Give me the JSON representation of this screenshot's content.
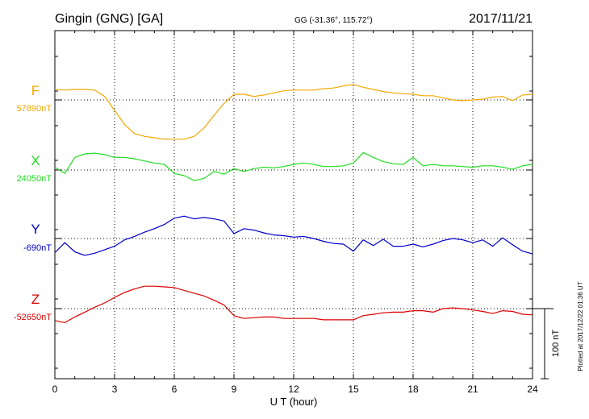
{
  "header": {
    "station": "Gingin (GNG)  [GA]",
    "coords": "GG (-31.36°, 115.72°)",
    "date": "2017/11/21"
  },
  "chart_data": {
    "type": "line",
    "title": "Gingin (GNG)  [GA]",
    "xlabel": "U T (hour)",
    "ylabel": "",
    "xlim": [
      0,
      24
    ],
    "xticks": [
      0,
      3,
      6,
      9,
      12,
      15,
      18,
      21,
      24
    ],
    "xtick_labels": [
      "0",
      "3",
      "6",
      "9",
      "12",
      "15",
      "18",
      "21",
      "24"
    ],
    "grid": true,
    "scale_bar": "100 nT",
    "units": "nT",
    "series": [
      {
        "name": "F",
        "baseline_label": "57890nT",
        "baseline": 57890,
        "color": "#f5a700",
        "x": [
          0,
          0.5,
          1,
          1.5,
          2,
          2.5,
          3,
          3.5,
          4,
          4.5,
          5,
          5.5,
          6,
          6.5,
          7,
          7.5,
          8,
          8.5,
          9,
          9.5,
          10,
          10.5,
          11,
          11.5,
          12,
          12.5,
          13,
          13.5,
          14,
          14.5,
          15,
          15.5,
          16,
          16.5,
          17,
          17.5,
          18,
          18.5,
          19,
          19.5,
          20,
          20.5,
          21,
          21.5,
          22,
          22.5,
          23,
          23.5,
          24
        ],
        "y": [
          57905,
          57904,
          57905,
          57905,
          57904,
          57895,
          57875,
          57855,
          57842,
          57838,
          57836,
          57834,
          57834,
          57834,
          57838,
          57850,
          57868,
          57885,
          57898,
          57898,
          57895,
          57897,
          57900,
          57903,
          57904,
          57904,
          57904,
          57906,
          57907,
          57910,
          57912,
          57908,
          57905,
          57902,
          57900,
          57899,
          57898,
          57896,
          57896,
          57893,
          57890,
          57889,
          57890,
          57891,
          57894,
          57895,
          57889,
          57897,
          57898
        ]
      },
      {
        "name": "X",
        "baseline_label": "24050nT",
        "baseline": 24050,
        "color": "#22dd22",
        "x": [
          0,
          0.5,
          1,
          1.5,
          2,
          2.5,
          3,
          3.5,
          4,
          4.5,
          5,
          5.5,
          6,
          6.5,
          7,
          7.5,
          8,
          8.5,
          9,
          9.5,
          10,
          10.5,
          11,
          11.5,
          12,
          12.5,
          13,
          13.5,
          14,
          14.5,
          15,
          15.5,
          16,
          16.5,
          17,
          17.5,
          18,
          18.5,
          19,
          19.5,
          20,
          20.5,
          21,
          21.5,
          22,
          22.5,
          23,
          23.5,
          24
        ],
        "y": [
          24054,
          24045,
          24068,
          24073,
          24074,
          24072,
          24068,
          24068,
          24066,
          24063,
          24060,
          24058,
          24045,
          24042,
          24035,
          24038,
          24048,
          24044,
          24052,
          24048,
          24052,
          24054,
          24053,
          24055,
          24058,
          24060,
          24058,
          24055,
          24055,
          24056,
          24060,
          24075,
          24068,
          24062,
          24059,
          24058,
          24068,
          24056,
          24058,
          24056,
          24056,
          24055,
          24054,
          24056,
          24056,
          24054,
          24051,
          24056,
          24058
        ]
      },
      {
        "name": "Y",
        "baseline_label": "-690nT",
        "baseline": -690,
        "color": "#0000cc",
        "x": [
          0,
          0.5,
          1,
          1.5,
          2,
          2.5,
          3,
          3.5,
          4,
          4.5,
          5,
          5.5,
          6,
          6.5,
          7,
          7.5,
          8,
          8.5,
          9,
          9.5,
          10,
          10.5,
          11,
          11.5,
          12,
          12.5,
          13,
          13.5,
          14,
          14.5,
          15,
          15.5,
          16,
          16.5,
          17,
          17.5,
          18,
          18.5,
          19,
          19.5,
          20,
          20.5,
          21,
          21.5,
          22,
          22.5,
          23,
          23.5,
          24
        ],
        "y": [
          -710,
          -696,
          -709,
          -714,
          -711,
          -706,
          -701,
          -692,
          -687,
          -681,
          -676,
          -670,
          -661,
          -658,
          -662,
          -660,
          -662,
          -665,
          -683,
          -676,
          -678,
          -682,
          -685,
          -686,
          -688,
          -687,
          -690,
          -694,
          -697,
          -698,
          -708,
          -692,
          -700,
          -691,
          -701,
          -701,
          -698,
          -702,
          -698,
          -693,
          -690,
          -692,
          -696,
          -692,
          -701,
          -689,
          -699,
          -708,
          -712
        ]
      },
      {
        "name": "Z",
        "baseline_label": "-52650nT",
        "baseline": -52650,
        "color": "#dd0000",
        "x": [
          0,
          0.5,
          1,
          1.5,
          2,
          2.5,
          3,
          3.5,
          4,
          4.5,
          5,
          5.5,
          6,
          6.5,
          7,
          7.5,
          8,
          8.5,
          9,
          9.5,
          10,
          10.5,
          11,
          11.5,
          12,
          12.5,
          13,
          13.5,
          14,
          14.5,
          15,
          15.5,
          16,
          16.5,
          17,
          17.5,
          18,
          18.5,
          19,
          19.5,
          20,
          20.5,
          21,
          21.5,
          22,
          22.5,
          23,
          23.5,
          24
        ],
        "y": [
          -52667,
          -52670,
          -52662,
          -52655,
          -52648,
          -52642,
          -52634,
          -52627,
          -52622,
          -52618,
          -52618,
          -52619,
          -52620,
          -52624,
          -52628,
          -52632,
          -52638,
          -52645,
          -52660,
          -52664,
          -52663,
          -52662,
          -52662,
          -52664,
          -52664,
          -52664,
          -52664,
          -52666,
          -52666,
          -52666,
          -52666,
          -52660,
          -52658,
          -52656,
          -52655,
          -52655,
          -52653,
          -52653,
          -52655,
          -52650,
          -52649,
          -52650,
          -52652,
          -52654,
          -52657,
          -52653,
          -52654,
          -52658,
          -52659
        ]
      }
    ]
  },
  "footer_note": "Plotted at 2017/12/22 01:36 UT"
}
